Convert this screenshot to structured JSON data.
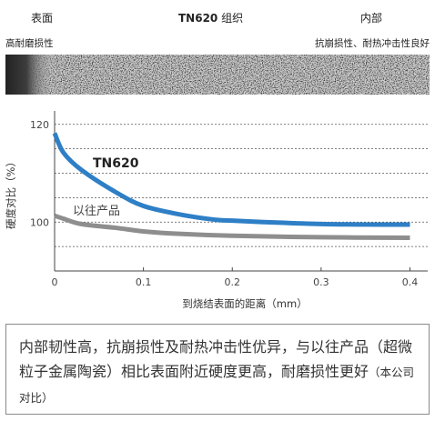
{
  "header": {
    "left_label": "表面",
    "center_title_code": "TN620",
    "center_title_suffix": " 组织",
    "right_label": "内部",
    "left_sub": "高耐磨损性",
    "right_sub": "抗崩损性、耐热冲击性良好"
  },
  "colors": {
    "tn620": "#2e7fc6",
    "conventional": "#8e8e8e",
    "grid": "#555555"
  },
  "chart_data": {
    "type": "line",
    "xlabel": "到烧结表面的距离（mm）",
    "ylabel": "硬度对比（%）",
    "xlim": [
      0,
      0.42
    ],
    "ylim": [
      90,
      122
    ],
    "xticks": [
      0,
      0.1,
      0.2,
      0.3,
      0.4
    ],
    "xtick_labels": [
      "0",
      "0.1",
      "0.2",
      "0.3",
      "0.4"
    ],
    "yticks": [
      100,
      120
    ],
    "ytick_labels": [
      "100",
      "120"
    ],
    "grid_y": [
      95,
      100,
      105,
      110,
      115,
      120
    ],
    "grid": "dashed horizontal",
    "series": [
      {
        "name": "TN620",
        "color": "#2e7fc6",
        "x": [
          0,
          0.01,
          0.03,
          0.07,
          0.1,
          0.14,
          0.18,
          0.2,
          0.25,
          0.3,
          0.35,
          0.4
        ],
        "y": [
          118.2,
          114.2,
          110.7,
          106.0,
          103.3,
          101.6,
          100.5,
          100.3,
          99.9,
          99.6,
          99.5,
          99.5
        ]
      },
      {
        "name": "以往产品",
        "color": "#8e8e8e",
        "x": [
          0,
          0.01,
          0.03,
          0.07,
          0.1,
          0.14,
          0.2,
          0.3,
          0.4
        ],
        "y": [
          101.3,
          100.7,
          99.6,
          98.8,
          98.1,
          97.6,
          97.2,
          96.9,
          96.8
        ]
      }
    ]
  },
  "note": {
    "text": "内部韧性高，抗崩损性及耐热冲击性优异，与以往产品（超微粒子金属陶瓷）相比表面附近硬度更高，耐磨损性更好",
    "small": "（本公司对比）"
  }
}
